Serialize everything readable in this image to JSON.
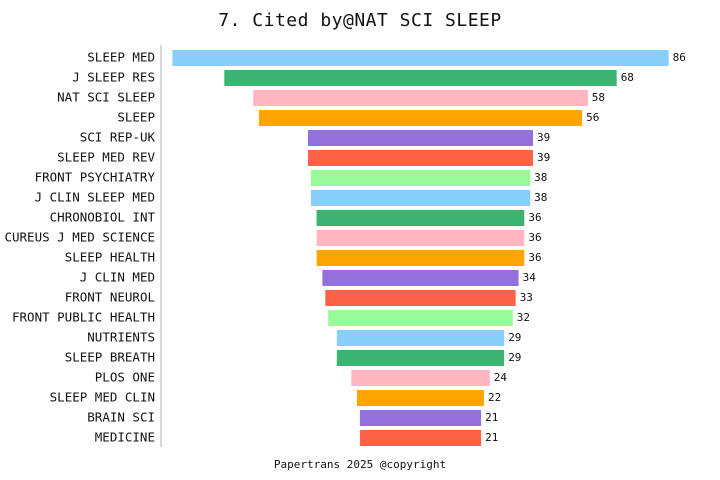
{
  "chart_data": {
    "type": "bar",
    "orientation": "horizontal",
    "title": "7. Cited by@NAT SCI SLEEP",
    "xlabel": "",
    "ylabel": "",
    "categories": [
      "SLEEP MED",
      "J SLEEP RES",
      "NAT SCI SLEEP",
      "SLEEP",
      "SCI REP-UK",
      "SLEEP MED REV",
      "FRONT PSYCHIATRY",
      "J CLIN SLEEP MED",
      "CHRONOBIOL INT",
      "CUREUS J MED SCIENCE",
      "SLEEP HEALTH",
      "J CLIN MED",
      "FRONT NEUROL",
      "FRONT PUBLIC HEALTH",
      "NUTRIENTS",
      "SLEEP BREATH",
      "PLOS ONE",
      "SLEEP MED CLIN",
      "BRAIN SCI",
      "MEDICINE"
    ],
    "values": [
      86,
      68,
      58,
      56,
      39,
      39,
      38,
      38,
      36,
      36,
      36,
      34,
      33,
      32,
      29,
      29,
      24,
      22,
      21,
      21
    ],
    "colors": [
      "#87CEFA",
      "#3CB371",
      "#FFB6C1",
      "#FFA500",
      "#9370DB",
      "#FF6347",
      "#98FB98",
      "#87CEFA",
      "#3CB371",
      "#FFB6C1",
      "#FFA500",
      "#9370DB",
      "#FF6347",
      "#98FB98",
      "#87CEFA",
      "#3CB371",
      "#FFB6C1",
      "#FFA500",
      "#9370DB",
      "#FF6347"
    ],
    "bar_alignment": "centered",
    "grid": false,
    "data_labels": true
  },
  "footer": "Papertrans 2025 @copyright"
}
